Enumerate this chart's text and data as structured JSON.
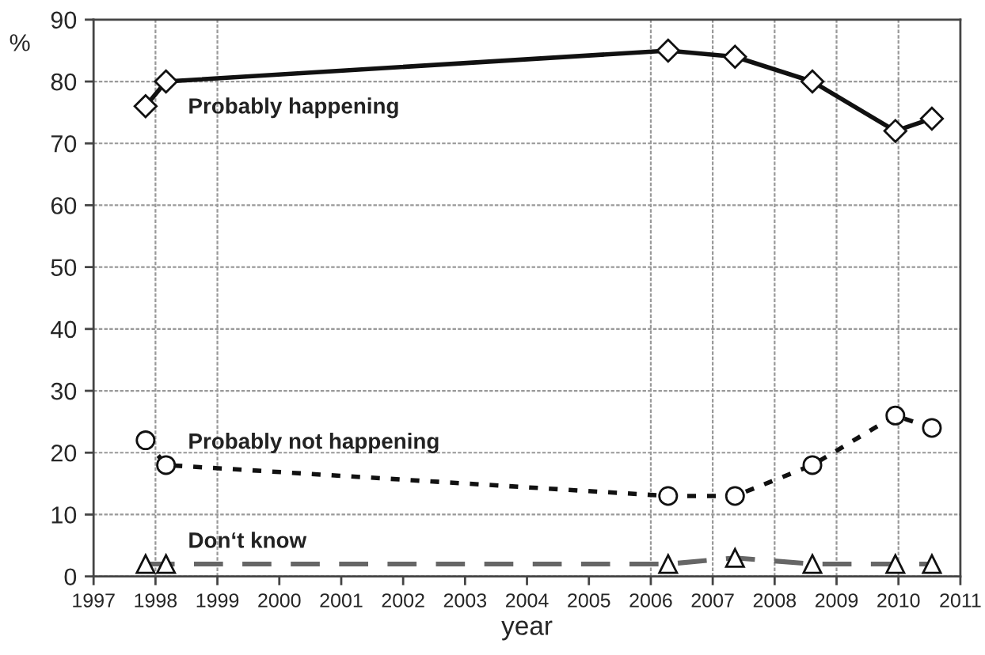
{
  "chart_data": {
    "type": "line",
    "xlabel": "year",
    "ylabel": "%",
    "x": [
      1997.84,
      1998.17,
      2006.28,
      2007.36,
      2008.61,
      2009.95,
      2010.54
    ],
    "series": [
      {
        "name": "Probably happening",
        "color": "#111111",
        "marker": "diamond",
        "line_style": "solid",
        "values": [
          76,
          80,
          85,
          84,
          80,
          72,
          74
        ]
      },
      {
        "name": "Probably not happening",
        "color": "#111111",
        "marker": "circle",
        "line_style": "dotted",
        "values": [
          22,
          18,
          13,
          13,
          18,
          26,
          24
        ]
      },
      {
        "name": "Don‘t know",
        "color": "#666666",
        "marker": "triangle",
        "line_style": "dashed",
        "values": [
          2,
          2,
          2,
          3,
          2,
          2,
          2
        ]
      }
    ],
    "xlim": [
      1997,
      2011
    ],
    "xticks": [
      1997,
      1998,
      1999,
      2000,
      2001,
      2002,
      2003,
      2004,
      2005,
      2006,
      2007,
      2008,
      2009,
      2010,
      2011
    ],
    "ylim": [
      0,
      90
    ],
    "yticks": [
      0,
      10,
      20,
      30,
      40,
      50,
      60,
      70,
      80,
      90
    ],
    "grid": "y",
    "legend": false,
    "ref_lines": [
      {
        "axis": "x",
        "value": 1998
      },
      {
        "axis": "x",
        "value": 1999
      },
      {
        "axis": "x",
        "value": 2006
      },
      {
        "axis": "x",
        "value": 2007
      },
      {
        "axis": "x",
        "value": 2008
      },
      {
        "axis": "x",
        "value": 2009
      },
      {
        "axis": "x",
        "value": 2010
      }
    ]
  }
}
